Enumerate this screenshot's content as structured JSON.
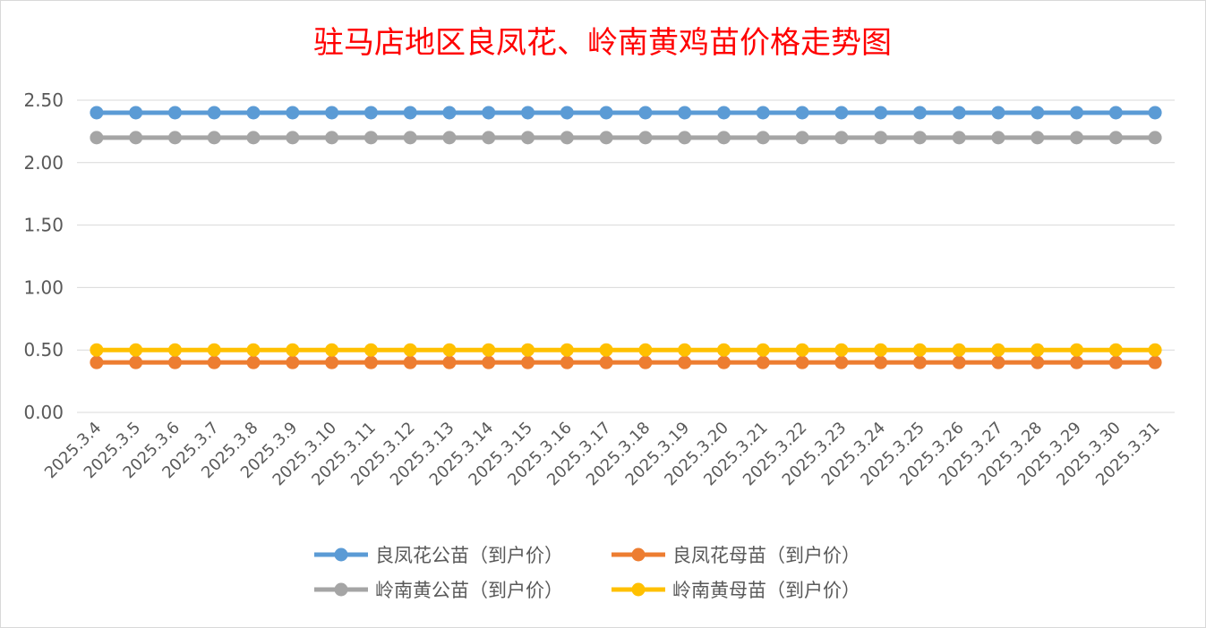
{
  "chart_data": {
    "type": "line",
    "title": "驻马店地区良凤花、岭南黄鸡苗价格走势图",
    "xlabel": "",
    "ylabel": "",
    "ylim": [
      0,
      2.5
    ],
    "y_ticks": [
      "0.00",
      "0.50",
      "1.00",
      "1.50",
      "2.00",
      "2.50"
    ],
    "grid": true,
    "legend_position": "bottom",
    "categories": [
      "2025.3.4",
      "2025.3.5",
      "2025.3.6",
      "2025.3.7",
      "2025.3.8",
      "2025.3.9",
      "2025.3.10",
      "2025.3.11",
      "2025.3.12",
      "2025.3.13",
      "2025.3.14",
      "2025.3.15",
      "2025.3.16",
      "2025.3.17",
      "2025.3.18",
      "2025.3.19",
      "2025.3.20",
      "2025.3.21",
      "2025.3.22",
      "2025.3.23",
      "2025.3.24",
      "2025.3.25",
      "2025.3.26",
      "2025.3.27",
      "2025.3.28",
      "2025.3.29",
      "2025.3.30",
      "2025.3.31"
    ],
    "series": [
      {
        "name": "良凤花公苗（到户价）",
        "color": "#5b9bd5",
        "values": [
          2.4,
          2.4,
          2.4,
          2.4,
          2.4,
          2.4,
          2.4,
          2.4,
          2.4,
          2.4,
          2.4,
          2.4,
          2.4,
          2.4,
          2.4,
          2.4,
          2.4,
          2.4,
          2.4,
          2.4,
          2.4,
          2.4,
          2.4,
          2.4,
          2.4,
          2.4,
          2.4,
          2.4
        ]
      },
      {
        "name": "良凤花母苗（到户价）",
        "color": "#ed7d31",
        "values": [
          0.4,
          0.4,
          0.4,
          0.4,
          0.4,
          0.4,
          0.4,
          0.4,
          0.4,
          0.4,
          0.4,
          0.4,
          0.4,
          0.4,
          0.4,
          0.4,
          0.4,
          0.4,
          0.4,
          0.4,
          0.4,
          0.4,
          0.4,
          0.4,
          0.4,
          0.4,
          0.4,
          0.4
        ]
      },
      {
        "name": "岭南黄公苗（到户价）",
        "color": "#a5a5a5",
        "values": [
          2.2,
          2.2,
          2.2,
          2.2,
          2.2,
          2.2,
          2.2,
          2.2,
          2.2,
          2.2,
          2.2,
          2.2,
          2.2,
          2.2,
          2.2,
          2.2,
          2.2,
          2.2,
          2.2,
          2.2,
          2.2,
          2.2,
          2.2,
          2.2,
          2.2,
          2.2,
          2.2,
          2.2
        ]
      },
      {
        "name": "岭南黄母苗（到户价）",
        "color": "#ffc000",
        "values": [
          0.5,
          0.5,
          0.5,
          0.5,
          0.5,
          0.5,
          0.5,
          0.5,
          0.5,
          0.5,
          0.5,
          0.5,
          0.5,
          0.5,
          0.5,
          0.5,
          0.5,
          0.5,
          0.5,
          0.5,
          0.5,
          0.5,
          0.5,
          0.5,
          0.5,
          0.5,
          0.5,
          0.5
        ]
      }
    ]
  }
}
